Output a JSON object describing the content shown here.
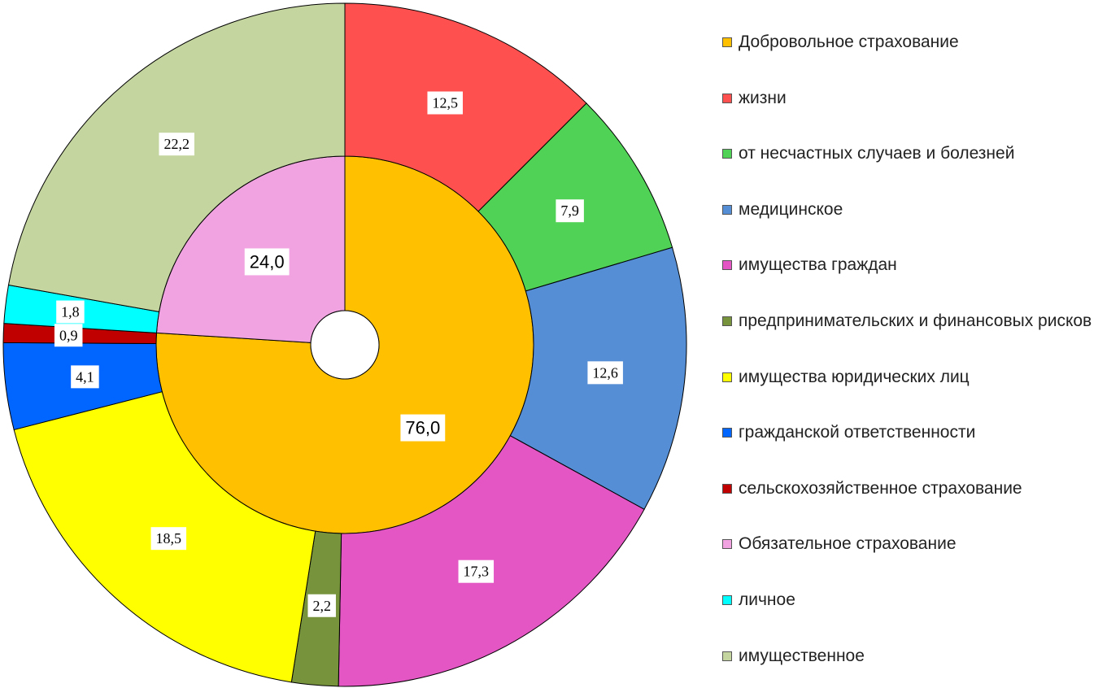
{
  "chart_data": {
    "type": "sunburst",
    "series": [
      {
        "name": "Добровольное страхование",
        "color": "#ffc000",
        "value": 76.0,
        "value_label": "76,0",
        "children": [
          {
            "name": "жизни",
            "color": "#ff5050",
            "value": 12.5,
            "value_label": "12,5"
          },
          {
            "name": "от несчастных случаев и болезней",
            "color": "#4fd255",
            "value": 7.9,
            "value_label": "7,9"
          },
          {
            "name": "медицинское",
            "color": "#558ed5",
            "value": 12.6,
            "value_label": "12,6"
          },
          {
            "name": "имущества граждан",
            "color": "#e356c4",
            "value": 17.3,
            "value_label": "17,3"
          },
          {
            "name": "предпринимательских и финансовых рисков",
            "color": "#77933c",
            "value": 2.2,
            "value_label": "2,2"
          },
          {
            "name": "имущества юридических лиц",
            "color": "#ffff00",
            "value": 18.5,
            "value_label": "18,5"
          },
          {
            "name": "гражданской ответственности",
            "color": "#0066ff",
            "value": 4.1,
            "value_label": "4,1"
          },
          {
            "name": "сельскохозяйственное страхование",
            "color": "#c00000",
            "value": 0.9,
            "value_label": "0,9"
          }
        ]
      },
      {
        "name": "Обязательное страхование",
        "color": "#f0a3e0",
        "value": 24.0,
        "value_label": "24,0",
        "children": [
          {
            "name": "личное",
            "color": "#00ffff",
            "value": 1.8,
            "value_label": "1,8"
          },
          {
            "name": "имущественное",
            "color": "#c4d59f",
            "value": 22.2,
            "value_label": "22,2"
          }
        ]
      }
    ]
  }
}
